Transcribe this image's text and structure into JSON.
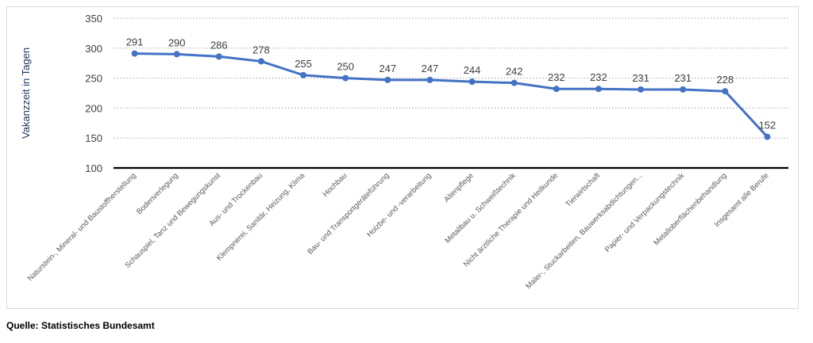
{
  "chart_data": {
    "type": "line",
    "title": "",
    "xlabel": "",
    "ylabel": "Vakanzzeit in Tagen",
    "ylim": [
      100,
      350
    ],
    "yticks": [
      100,
      150,
      200,
      250,
      300,
      350
    ],
    "grid": "horizontal-dotted",
    "categories": [
      "Naturstein-, Mineral- und Baustoffherstellung",
      "Bodenverlegung",
      "Schauspiel, Tanz und Bewegungskunst",
      "Aus- und Trockenbau",
      "Klempnerei, Sanitär, Heizung, Klima",
      "Hochbau",
      "Bau- und Transportgeräteführung",
      "Holzbe- und -verarbeitung",
      "Altenpflege",
      "Metallbau u. Schweißtechnik",
      "Nicht ärztliche Therapie und Heilkunde",
      "Tierwirtschaft",
      "Maler-, Stuckarbeiten, Bauwerksabdichtungen...",
      "Papier- und Verpackungstechnik",
      "Metalloberflächenbehandlung",
      "Insgesamt alle Berufe"
    ],
    "series": [
      {
        "values": [
          291,
          290,
          286,
          278,
          255,
          250,
          247,
          247,
          244,
          242,
          232,
          232,
          231,
          231,
          228,
          152
        ],
        "color": "#4472c4"
      }
    ],
    "axis_color": "#000000",
    "label_color": "#404040"
  },
  "footer": {
    "source": "Quelle: Statistisches Bundesamt"
  }
}
